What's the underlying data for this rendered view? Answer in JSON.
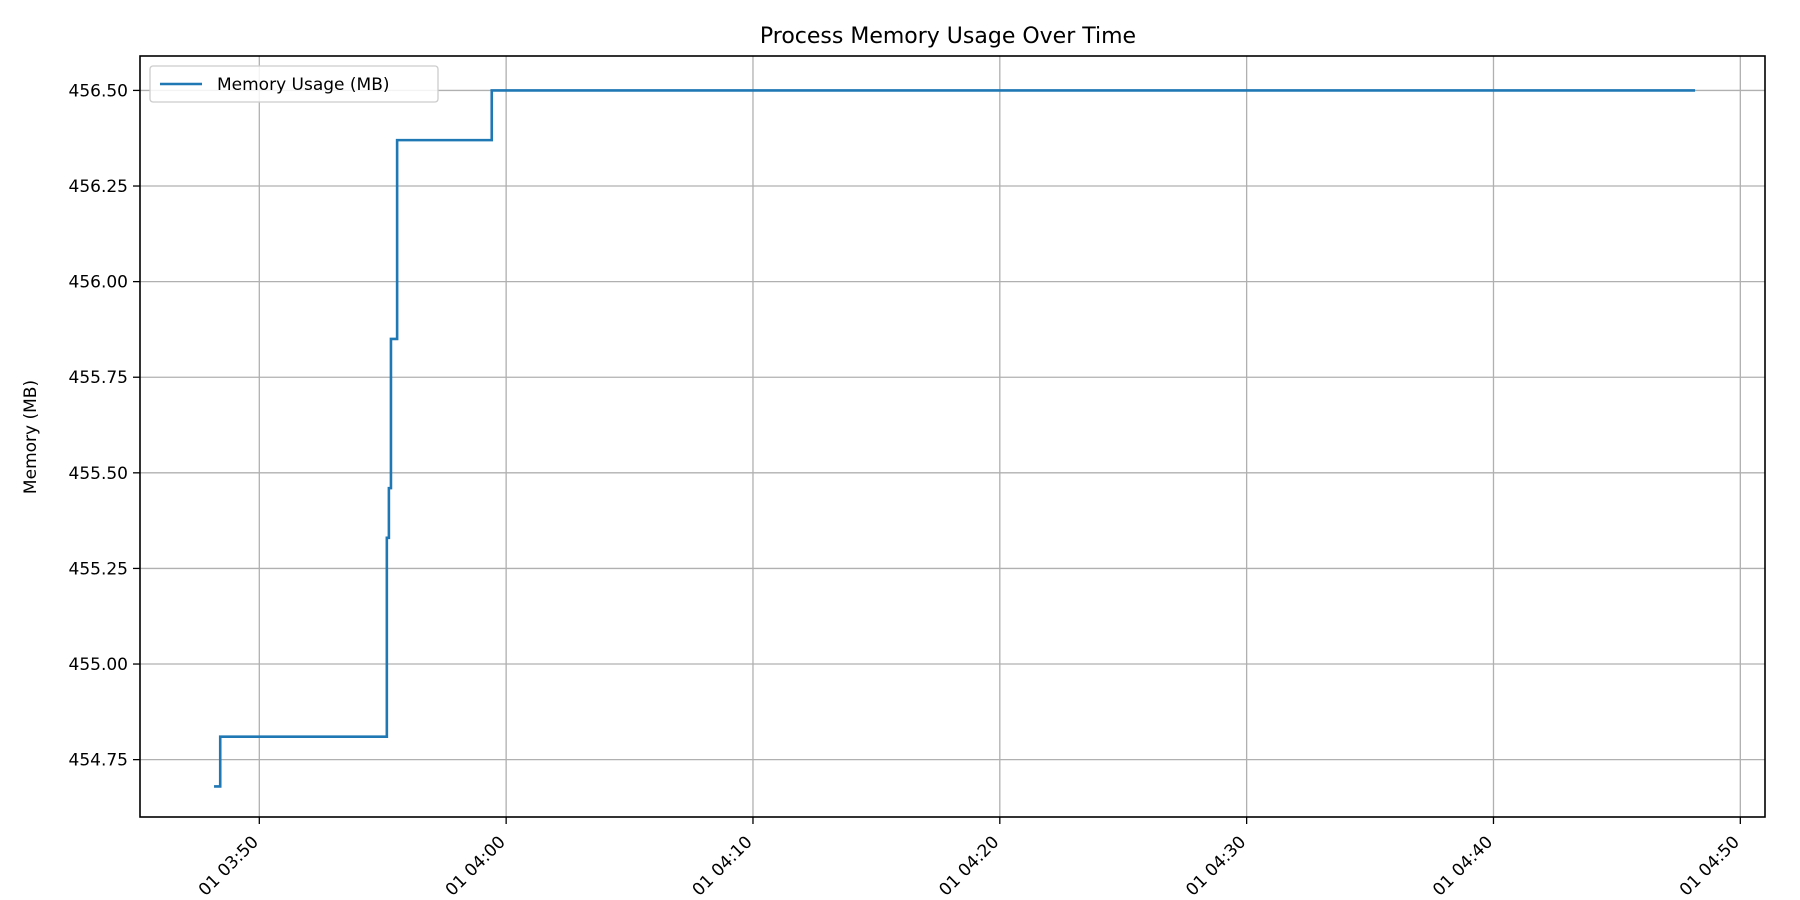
{
  "chart_data": {
    "type": "line",
    "title": "Process Memory Usage Over Time",
    "xlabel": "",
    "ylabel": "Memory (MB)",
    "grid": true,
    "legend_position": "top-left",
    "xlim": [
      "03:45:10",
      "04:51:00"
    ],
    "ylim": [
      454.6,
      456.59
    ],
    "x_ticks": [
      "03:50",
      "04:00",
      "04:10",
      "04:20",
      "04:30",
      "04:40",
      "04:50"
    ],
    "x_tick_labels": [
      "01 03:50",
      "01 04:00",
      "01 04:10",
      "01 04:20",
      "01 04:30",
      "01 04:40",
      "01 04:50"
    ],
    "y_ticks": [
      454.75,
      455.0,
      455.25,
      455.5,
      455.75,
      456.0,
      456.25,
      456.5
    ],
    "y_tick_labels": [
      "454.75",
      "455.00",
      "455.25",
      "455.50",
      "455.75",
      "456.00",
      "456.25",
      "456.50"
    ],
    "series": [
      {
        "name": "Memory Usage (MB)",
        "color": "#1f77b4",
        "step": true,
        "points": [
          {
            "x": "03:48:10",
            "y": 454.68
          },
          {
            "x": "03:48:25",
            "y": 454.81
          },
          {
            "x": "03:55:10",
            "y": 455.33
          },
          {
            "x": "03:55:15",
            "y": 455.46
          },
          {
            "x": "03:55:20",
            "y": 455.85
          },
          {
            "x": "03:55:35",
            "y": 456.37
          },
          {
            "x": "03:59:25",
            "y": 456.5
          },
          {
            "x": "04:48:10",
            "y": 456.5
          }
        ]
      }
    ]
  }
}
